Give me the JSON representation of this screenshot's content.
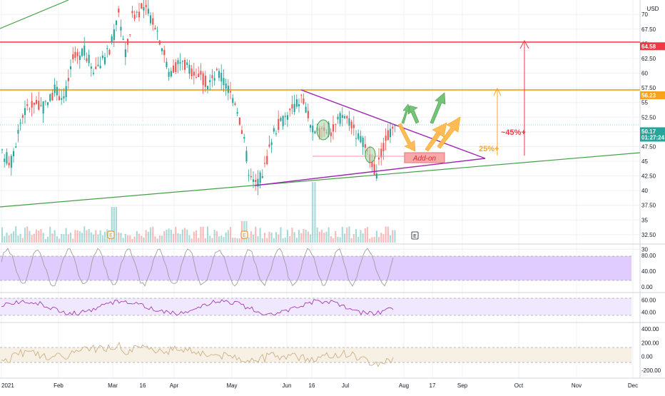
{
  "chart_data": {
    "type": "candlestick",
    "currency": "USD",
    "x_axis": [
      "2021",
      "Feb",
      "Mar",
      "16",
      "Apr",
      "May",
      "Jun",
      "16",
      "Jul",
      "Aug",
      "17",
      "Sep",
      "Oct",
      "Nov",
      "Dec"
    ],
    "price_axis": [
      "70",
      "67.50",
      "65",
      "62.50",
      "60",
      "57.50",
      "55",
      "52.50",
      "50",
      "47.50",
      "45",
      "42.50",
      "40",
      "37.50",
      "35",
      "32.50",
      "30"
    ],
    "price_ylim": [
      30,
      71
    ],
    "price_tags": [
      {
        "label": "64.58",
        "value": 64.58,
        "color": "#f23645"
      },
      {
        "label": "56.23",
        "value": 56.23,
        "color": "#f7a21b"
      },
      {
        "label": "50.17",
        "value": 50.17,
        "color": "#26a69a",
        "sub": "01:27:24"
      }
    ],
    "horizontal_levels": [
      {
        "value": 64.58,
        "color": "#f23645"
      },
      {
        "value": 56.23,
        "color": "#f7a21b"
      }
    ],
    "annotations": {
      "add_on": "Add-on",
      "pct_25": "25%+",
      "pct_45": "~45%+",
      "earnings": "E"
    },
    "candles_sample": [
      {
        "t": "2021-01-04",
        "o": 47.5,
        "h": 49.0,
        "l": 44.5,
        "c": 45.5
      },
      {
        "t": "2021-01-25",
        "o": 52.0,
        "h": 56.0,
        "l": 50.0,
        "c": 55.0
      },
      {
        "t": "2021-02-10",
        "o": 60.0,
        "h": 65.0,
        "l": 58.5,
        "c": 63.0
      },
      {
        "t": "2021-03-05",
        "o": 64.0,
        "h": 71.0,
        "l": 62.0,
        "c": 69.0
      },
      {
        "t": "2021-03-16",
        "o": 68.0,
        "h": 71.5,
        "l": 64.0,
        "c": 66.0
      },
      {
        "t": "2021-04-01",
        "o": 63.0,
        "h": 64.0,
        "l": 58.0,
        "c": 59.0
      },
      {
        "t": "2021-04-20",
        "o": 61.0,
        "h": 62.0,
        "l": 56.0,
        "c": 57.0
      },
      {
        "t": "2021-05-12",
        "o": 47.0,
        "h": 48.0,
        "l": 40.0,
        "c": 41.0
      },
      {
        "t": "2021-06-01",
        "o": 52.0,
        "h": 56.0,
        "l": 50.5,
        "c": 55.0
      },
      {
        "t": "2021-06-15",
        "o": 49.0,
        "h": 50.5,
        "l": 45.0,
        "c": 49.5
      },
      {
        "t": "2021-07-01",
        "o": 52.5,
        "h": 53.5,
        "l": 50.0,
        "c": 51.0
      },
      {
        "t": "2021-07-19",
        "o": 45.0,
        "h": 46.0,
        "l": 42.5,
        "c": 44.0
      },
      {
        "t": "2021-07-28",
        "o": 49.5,
        "h": 51.0,
        "l": 48.0,
        "c": 50.17
      }
    ],
    "indicators": [
      {
        "name": "stochastic",
        "axis": [
          "80.00",
          "40.00",
          "0.00"
        ],
        "ylim": [
          0,
          100
        ],
        "band": [
          20,
          80
        ]
      },
      {
        "name": "rsi",
        "axis": [
          "60.00",
          "40.00"
        ],
        "ylim": [
          25,
          70
        ],
        "band": [
          30,
          60
        ]
      },
      {
        "name": "cci",
        "axis": [
          "400.00",
          "200.00",
          "0.00",
          "-200.00"
        ],
        "ylim": [
          -260,
          460
        ],
        "band": [
          -100,
          100
        ]
      }
    ]
  }
}
